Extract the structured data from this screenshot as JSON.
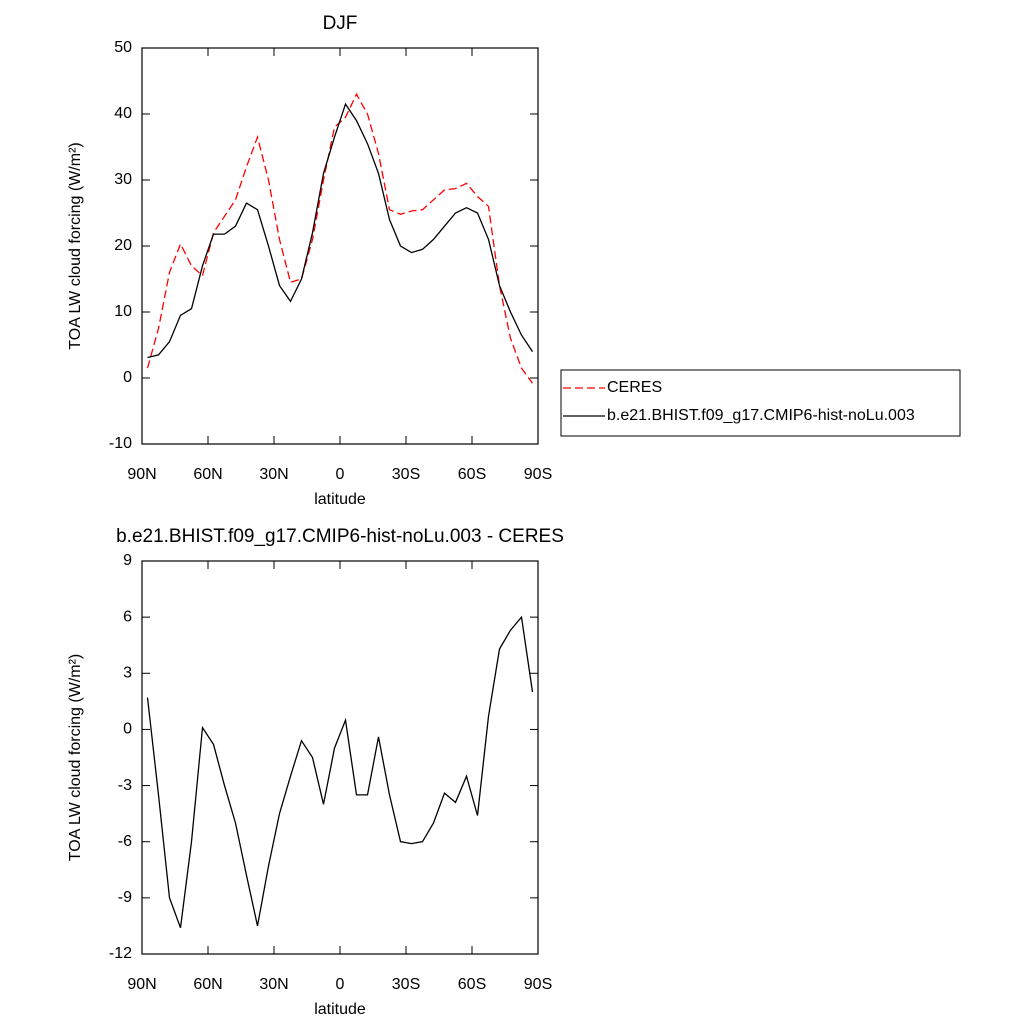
{
  "chart_data": [
    {
      "type": "line",
      "title": "DJF",
      "x_label": "latitude",
      "y_label": "TOA LW cloud forcing (W/m²)",
      "x": [
        87.5,
        82.5,
        77.5,
        72.5,
        67.5,
        62.5,
        57.5,
        52.5,
        47.5,
        42.5,
        37.5,
        32.5,
        27.5,
        22.5,
        17.5,
        12.5,
        7.5,
        2.5,
        -2.5,
        -7.5,
        -12.5,
        -17.5,
        -22.5,
        -27.5,
        -32.5,
        -37.5,
        -42.5,
        -47.5,
        -52.5,
        -57.5,
        -62.5,
        -67.5,
        -72.5,
        -77.5,
        -82.5,
        -87.5
      ],
      "xlim": [
        90,
        -90
      ],
      "xticks": [
        {
          "value": 90,
          "label": "90N"
        },
        {
          "value": 60,
          "label": "60N"
        },
        {
          "value": 30,
          "label": "30N"
        },
        0,
        {
          "value": -30,
          "label": "30S"
        },
        {
          "value": -60,
          "label": "60S"
        },
        {
          "value": -90,
          "label": "90S"
        }
      ],
      "ylim": [
        -10,
        50
      ],
      "yticks": [
        -10,
        0,
        10,
        20,
        30,
        40,
        50
      ],
      "legend": "right",
      "series": [
        {
          "name": "CERES",
          "color": "#ff0000",
          "style": "dashed",
          "values": [
            1.5,
            7.5,
            16,
            20.3,
            17,
            15.5,
            22,
            24.5,
            27,
            32,
            36.5,
            30,
            21,
            14.5,
            15,
            21,
            30,
            38,
            39.5,
            43,
            40,
            34,
            25.5,
            24.8,
            25.3,
            25.5,
            27,
            28.5,
            28.7,
            29.5,
            27.5,
            26,
            14,
            6,
            1.5,
            -0.8
          ]
        },
        {
          "name": "b.e21.BHIST.f09_g17.CMIP6-hist-noLu.003",
          "color": "#000000",
          "style": "solid",
          "values": [
            3.1,
            3.5,
            5.5,
            9.5,
            10.5,
            17,
            21.8,
            21.8,
            23,
            26.5,
            25.5,
            20,
            14,
            11.6,
            15,
            22,
            31,
            36.5,
            41.5,
            39,
            35.5,
            31,
            24,
            20,
            19,
            19.5,
            21,
            23,
            25,
            25.8,
            25,
            21,
            14,
            10,
            6.5,
            4
          ]
        }
      ]
    },
    {
      "type": "line",
      "title": "b.e21.BHIST.f09_g17.CMIP6-hist-noLu.003 - CERES",
      "x_label": "latitude",
      "y_label": "TOA LW cloud forcing (W/m²)",
      "x": [
        87.5,
        82.5,
        77.5,
        72.5,
        67.5,
        62.5,
        57.5,
        52.5,
        47.5,
        42.5,
        37.5,
        32.5,
        27.5,
        22.5,
        17.5,
        12.5,
        7.5,
        2.5,
        -2.5,
        -7.5,
        -12.5,
        -17.5,
        -22.5,
        -27.5,
        -32.5,
        -37.5,
        -42.5,
        -47.5,
        -52.5,
        -57.5,
        -62.5,
        -67.5,
        -72.5,
        -77.5,
        -82.5,
        -87.5
      ],
      "xlim": [
        90,
        -90
      ],
      "xticks": [
        {
          "value": 90,
          "label": "90N"
        },
        {
          "value": 60,
          "label": "60N"
        },
        {
          "value": 30,
          "label": "30N"
        },
        0,
        {
          "value": -30,
          "label": "30S"
        },
        {
          "value": -60,
          "label": "60S"
        },
        {
          "value": -90,
          "label": "90S"
        }
      ],
      "ylim": [
        -12,
        9
      ],
      "yticks": [
        -12,
        -9,
        -6,
        -3,
        0,
        3,
        6,
        9
      ],
      "series": [
        {
          "color": "#000000",
          "style": "solid",
          "values": [
            1.7,
            -3.5,
            -9,
            -10.6,
            -6,
            0.1,
            -0.8,
            -3,
            -5,
            -7.8,
            -10.5,
            -7.3,
            -4.5,
            -2.5,
            -0.6,
            -1.5,
            -4,
            -1,
            0.5,
            -3.5,
            -3.5,
            -0.4,
            -3.5,
            -6,
            -6.1,
            -6,
            -5,
            -3.4,
            -3.9,
            -2.5,
            -4.6,
            0.7,
            4.3,
            5.3,
            6,
            2
          ]
        }
      ]
    }
  ]
}
